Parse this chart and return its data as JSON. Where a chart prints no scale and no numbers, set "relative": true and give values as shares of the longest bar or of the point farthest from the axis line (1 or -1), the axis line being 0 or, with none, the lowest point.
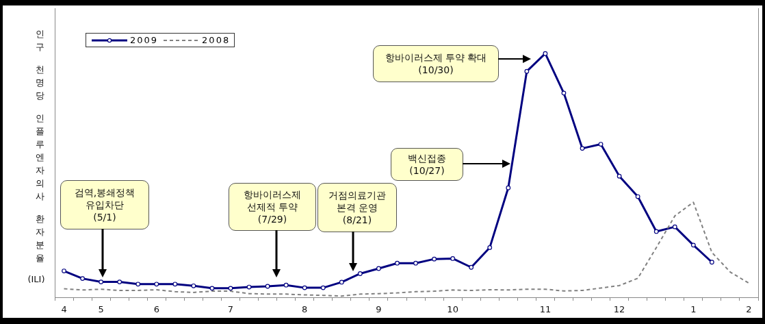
{
  "chart_data": {
    "type": "line",
    "relative": true,
    "ylabel": "인구 천명당 인플루엔자의사 환자분율 (ILI)",
    "categories": [
      "4",
      null,
      "5",
      null,
      null,
      "6",
      null,
      null,
      null,
      "7",
      null,
      null,
      null,
      "8",
      null,
      null,
      null,
      "9",
      null,
      null,
      null,
      "10",
      null,
      null,
      null,
      null,
      "11",
      null,
      null,
      null,
      "12",
      null,
      null,
      null,
      "1",
      null,
      null,
      "2"
    ],
    "series": [
      {
        "name": "2009",
        "color": "#000080",
        "marker": "circle",
        "line_style": "solid",
        "values": [
          0.108,
          0.077,
          0.063,
          0.063,
          0.054,
          0.054,
          0.054,
          0.047,
          0.037,
          0.037,
          0.042,
          0.045,
          0.05,
          0.039,
          0.039,
          0.062,
          0.097,
          0.118,
          0.14,
          0.14,
          0.157,
          0.159,
          0.123,
          0.204,
          0.449,
          0.927,
          1,
          0.838,
          0.611,
          0.628,
          0.497,
          0.413,
          0.27,
          0.289,
          0.214,
          0.144,
          null,
          null
        ]
      },
      {
        "name": "2008",
        "color": "#808080",
        "marker": "none",
        "line_style": "dashed",
        "values": [
          0.035,
          0.03,
          0.033,
          0.028,
          0.028,
          0.031,
          0.023,
          0.02,
          0.025,
          0.025,
          0.015,
          0.013,
          0.013,
          0.01,
          0.008,
          0.005,
          0.013,
          0.015,
          0.018,
          0.023,
          0.025,
          0.03,
          0.028,
          0.031,
          0.03,
          0.033,
          0.033,
          0.026,
          0.028,
          0.038,
          0.048,
          0.078,
          0.204,
          0.334,
          0.39,
          0.184,
          0.103,
          0.058
        ]
      }
    ],
    "legend": "top left",
    "annotations": [
      "검역,봉쇄정책\n유입차단\n(5/1)",
      "항바이러스제\n선제적 투약\n(7/29)",
      "거점의료기관\n본격 운영\n(8/21)",
      "백신접종\n(10/27)",
      "항바이러스제 투약 확대\n(10/30)"
    ]
  }
}
